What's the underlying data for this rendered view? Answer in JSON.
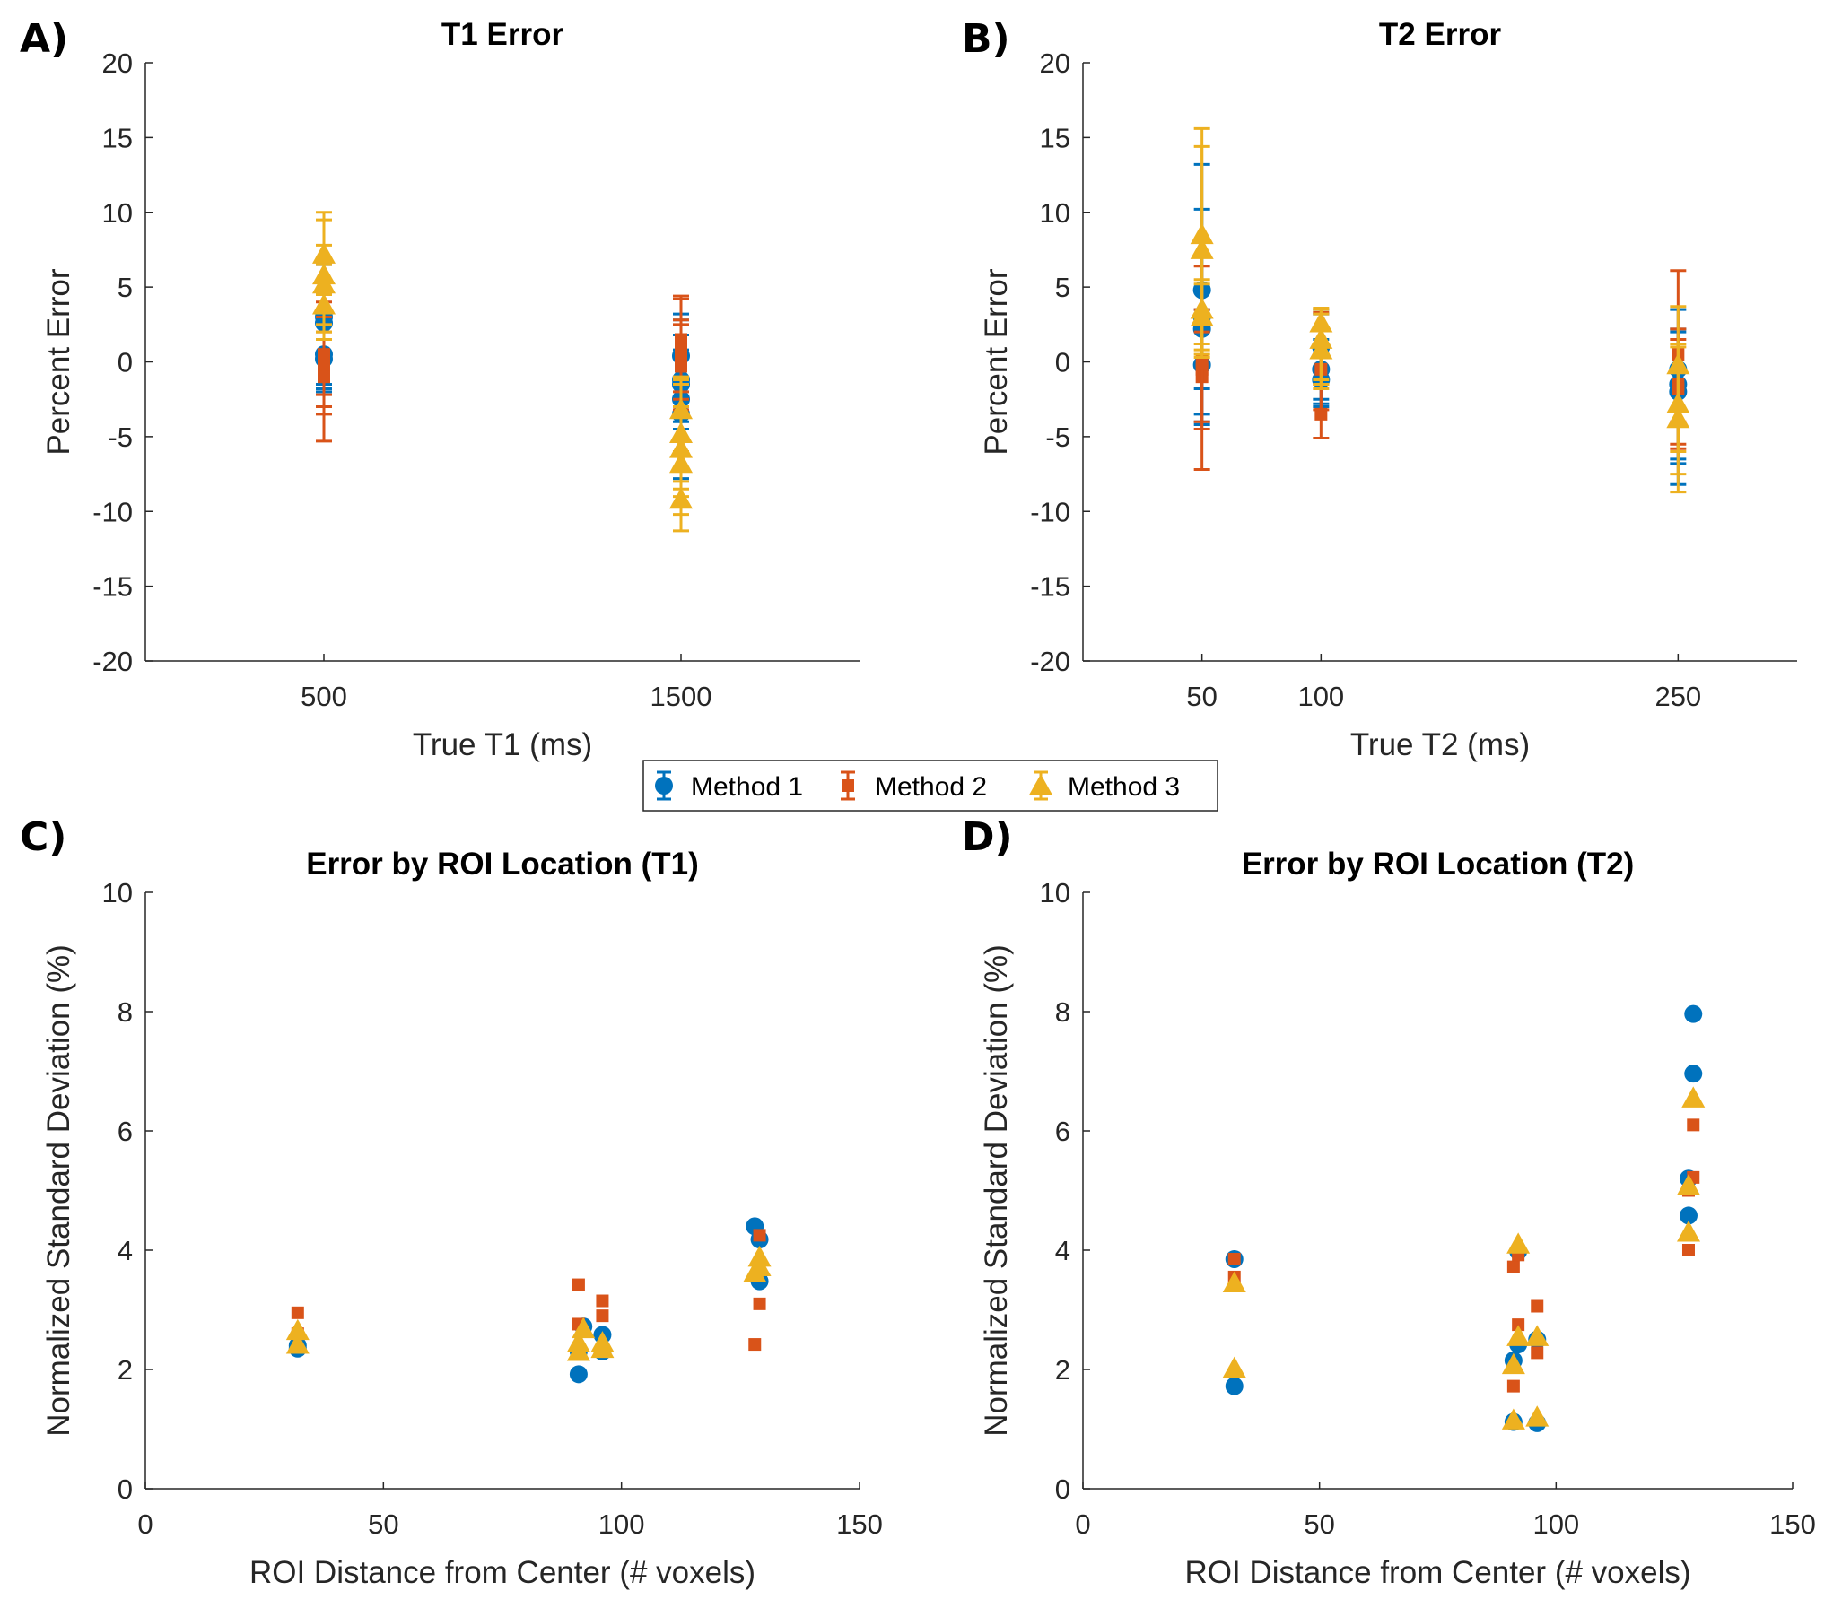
{
  "colors": {
    "method1": "#0072BD",
    "method2": "#D95319",
    "method3": "#EDB120",
    "axis": "#262626"
  },
  "legend": {
    "placement": "center-between-rows",
    "entries": [
      {
        "label": "Method 1",
        "marker": "circle-errorbar",
        "color": "#0072BD"
      },
      {
        "label": "Method 2",
        "marker": "square-errorbar",
        "color": "#D95319"
      },
      {
        "label": "Method 3",
        "marker": "triangle-errorbar",
        "color": "#EDB120"
      }
    ]
  },
  "chart_data": [
    {
      "panel": "A)",
      "type": "scatter",
      "title": "T1 Error",
      "xlabel": "True T1 (ms)",
      "ylabel": "Percent Error",
      "xlim": [
        0,
        2000
      ],
      "ylim": [
        -20,
        20
      ],
      "xticks": [
        500,
        1500
      ],
      "yticks": [
        -20,
        -15,
        -10,
        -5,
        0,
        5,
        10,
        15,
        20
      ],
      "grid": false,
      "series": [
        {
          "name": "Method 1",
          "marker": "circle",
          "points": [
            {
              "x": 500,
              "y": 2.6,
              "lo": -1.8,
              "hi": 6.5
            },
            {
              "x": 500,
              "y": 3.0,
              "lo": -1.5,
              "hi": 5.5
            },
            {
              "x": 500,
              "y": 0.5,
              "lo": -2.0,
              "hi": 3.5
            },
            {
              "x": 500,
              "y": 0.2,
              "lo": -1.5,
              "hi": 2.5
            },
            {
              "x": 1500,
              "y": 0.4,
              "lo": -2.5,
              "hi": 3.2
            },
            {
              "x": 1500,
              "y": -1.2,
              "lo": -4.0,
              "hi": 2.8
            },
            {
              "x": 1500,
              "y": -1.5,
              "lo": -4.5,
              "hi": 1.8
            },
            {
              "x": 1500,
              "y": -2.5,
              "lo": -6.0,
              "hi": 0.8
            },
            {
              "x": 1500,
              "y": -3.5,
              "lo": -7.8,
              "hi": 0.5
            }
          ]
        },
        {
          "name": "Method 2",
          "marker": "square",
          "points": [
            {
              "x": 500,
              "y": 0.5,
              "lo": -3.0,
              "hi": 4.0
            },
            {
              "x": 500,
              "y": -0.3,
              "lo": -3.5,
              "hi": 3.0
            },
            {
              "x": 500,
              "y": -1.0,
              "lo": -5.3,
              "hi": 2.5
            },
            {
              "x": 500,
              "y": 0.0,
              "lo": -2.2,
              "hi": 2.0
            },
            {
              "x": 1500,
              "y": 1.5,
              "lo": -2.0,
              "hi": 4.4
            },
            {
              "x": 1500,
              "y": 0.8,
              "lo": -2.5,
              "hi": 4.2
            },
            {
              "x": 1500,
              "y": 0.2,
              "lo": -3.0,
              "hi": 2.8
            },
            {
              "x": 1500,
              "y": -0.3,
              "lo": -3.2,
              "hi": 2.5
            }
          ]
        },
        {
          "name": "Method 3",
          "marker": "triangle",
          "points": [
            {
              "x": 500,
              "y": 7.2,
              "lo": 4.5,
              "hi": 10.0
            },
            {
              "x": 500,
              "y": 5.8,
              "lo": 2.5,
              "hi": 9.5
            },
            {
              "x": 500,
              "y": 5.2,
              "lo": 2.0,
              "hi": 7.8
            },
            {
              "x": 500,
              "y": 3.8,
              "lo": 1.5,
              "hi": 6.5
            },
            {
              "x": 1500,
              "y": -3.2,
              "lo": -8.0,
              "hi": -1.2
            },
            {
              "x": 1500,
              "y": -4.8,
              "lo": -8.5,
              "hi": -1.0
            },
            {
              "x": 1500,
              "y": -5.8,
              "lo": -9.0,
              "hi": -1.5
            },
            {
              "x": 1500,
              "y": -6.8,
              "lo": -10.2,
              "hi": -3.0
            },
            {
              "x": 1500,
              "y": -9.2,
              "lo": -11.3,
              "hi": -6.0
            }
          ]
        }
      ]
    },
    {
      "panel": "B)",
      "type": "scatter",
      "title": "T2 Error",
      "xlabel": "True T2 (ms)",
      "ylabel": "Percent Error",
      "xlim": [
        0,
        300
      ],
      "ylim": [
        -20,
        20
      ],
      "xticks": [
        50,
        100,
        250
      ],
      "yticks": [
        -20,
        -15,
        -10,
        -5,
        0,
        5,
        10,
        15,
        20
      ],
      "grid": false,
      "series": [
        {
          "name": "Method 1",
          "marker": "circle",
          "points": [
            {
              "x": 50,
              "y": 4.8,
              "lo": -3.5,
              "hi": 13.2
            },
            {
              "x": 50,
              "y": 2.2,
              "lo": -1.8,
              "hi": 10.2
            },
            {
              "x": 50,
              "y": 3.0,
              "lo": -4.0,
              "hi": 5.0
            },
            {
              "x": 50,
              "y": -0.2,
              "lo": -4.2,
              "hi": 3.5
            },
            {
              "x": 100,
              "y": 1.0,
              "lo": -2.5,
              "hi": 3.5
            },
            {
              "x": 100,
              "y": -0.5,
              "lo": -2.8,
              "hi": 3.2
            },
            {
              "x": 100,
              "y": -1.2,
              "lo": -3.0,
              "hi": 1.5
            },
            {
              "x": 250,
              "y": -0.5,
              "lo": -6.5,
              "hi": 3.5
            },
            {
              "x": 250,
              "y": -1.5,
              "lo": -8.2,
              "hi": 2.2
            },
            {
              "x": 250,
              "y": -2.0,
              "lo": -6.8,
              "hi": 2.0
            }
          ]
        },
        {
          "name": "Method 2",
          "marker": "square",
          "points": [
            {
              "x": 50,
              "y": -0.5,
              "lo": -7.2,
              "hi": 6.4
            },
            {
              "x": 50,
              "y": -1.0,
              "lo": -4.5,
              "hi": 3.5
            },
            {
              "x": 50,
              "y": 0.0,
              "lo": -4.0,
              "hi": 2.0
            },
            {
              "x": 100,
              "y": -3.5,
              "lo": -5.1,
              "hi": -1.5
            },
            {
              "x": 100,
              "y": -0.5,
              "lo": -3.2,
              "hi": 3.3
            },
            {
              "x": 250,
              "y": -1.5,
              "lo": -5.5,
              "hi": 6.1
            },
            {
              "x": 250,
              "y": -1.8,
              "lo": -5.8,
              "hi": 2.2
            },
            {
              "x": 250,
              "y": 0.5,
              "lo": -4.0,
              "hi": 1.5
            }
          ]
        },
        {
          "name": "Method 3",
          "marker": "triangle",
          "points": [
            {
              "x": 50,
              "y": 8.5,
              "lo": 1.2,
              "hi": 15.6
            },
            {
              "x": 50,
              "y": 7.5,
              "lo": 0.8,
              "hi": 14.4
            },
            {
              "x": 50,
              "y": 3.5,
              "lo": 0.5,
              "hi": 5.2
            },
            {
              "x": 50,
              "y": 3.0,
              "lo": 0.3,
              "hi": 5.5
            },
            {
              "x": 100,
              "y": 2.6,
              "lo": -1.5,
              "hi": 3.6
            },
            {
              "x": 100,
              "y": 1.5,
              "lo": -1.8,
              "hi": 3.5
            },
            {
              "x": 100,
              "y": 0.8,
              "lo": -1.2,
              "hi": 3.2
            },
            {
              "x": 250,
              "y": -0.2,
              "lo": -6.0,
              "hi": 3.7
            },
            {
              "x": 250,
              "y": -2.8,
              "lo": -8.7,
              "hi": 1.2
            },
            {
              "x": 250,
              "y": -3.8,
              "lo": -7.5,
              "hi": 1.0
            }
          ]
        }
      ]
    },
    {
      "panel": "C)",
      "type": "scatter",
      "title": "Error by ROI Location (T1)",
      "xlabel": "ROI Distance from Center (# voxels)",
      "ylabel": "Normalized Standard Deviation (%)",
      "xlim": [
        0,
        150
      ],
      "ylim": [
        0,
        10
      ],
      "xticks": [
        0,
        50,
        100,
        150
      ],
      "yticks": [
        0,
        2,
        4,
        6,
        8,
        10
      ],
      "grid": false,
      "series": [
        {
          "name": "Method 1",
          "marker": "circle",
          "points": [
            {
              "x": 32,
              "y": 2.35
            },
            {
              "x": 32,
              "y": 2.4
            },
            {
              "x": 91,
              "y": 1.92
            },
            {
              "x": 91,
              "y": 2.3
            },
            {
              "x": 92,
              "y": 2.72
            },
            {
              "x": 96,
              "y": 2.58
            },
            {
              "x": 96,
              "y": 2.3
            },
            {
              "x": 128,
              "y": 4.4
            },
            {
              "x": 129,
              "y": 4.18
            },
            {
              "x": 129,
              "y": 3.48
            }
          ]
        },
        {
          "name": "Method 2",
          "marker": "square",
          "points": [
            {
              "x": 32,
              "y": 2.95
            },
            {
              "x": 32,
              "y": 2.6
            },
            {
              "x": 91,
              "y": 3.42
            },
            {
              "x": 91,
              "y": 2.76
            },
            {
              "x": 96,
              "y": 3.15
            },
            {
              "x": 96,
              "y": 2.9
            },
            {
              "x": 129,
              "y": 4.25
            },
            {
              "x": 129,
              "y": 3.1
            },
            {
              "x": 128,
              "y": 2.42
            }
          ]
        },
        {
          "name": "Method 3",
          "marker": "triangle",
          "points": [
            {
              "x": 32,
              "y": 2.65
            },
            {
              "x": 32,
              "y": 2.42
            },
            {
              "x": 91,
              "y": 2.3
            },
            {
              "x": 91,
              "y": 2.45
            },
            {
              "x": 92,
              "y": 2.68
            },
            {
              "x": 96,
              "y": 2.45
            },
            {
              "x": 96,
              "y": 2.35
            },
            {
              "x": 129,
              "y": 3.88
            },
            {
              "x": 129,
              "y": 3.72
            },
            {
              "x": 128,
              "y": 3.62
            }
          ]
        }
      ]
    },
    {
      "panel": "D)",
      "type": "scatter",
      "title": "Error by ROI Location (T2)",
      "xlabel": "ROI Distance from Center (# voxels)",
      "ylabel": "Normalized Standard Deviation (%)",
      "xlim": [
        0,
        150
      ],
      "ylim": [
        0,
        10
      ],
      "xticks": [
        0,
        50,
        100,
        150
      ],
      "yticks": [
        0,
        2,
        4,
        6,
        8,
        10
      ],
      "grid": false,
      "series": [
        {
          "name": "Method 1",
          "marker": "circle",
          "points": [
            {
              "x": 32,
              "y": 3.85
            },
            {
              "x": 32,
              "y": 1.72
            },
            {
              "x": 91,
              "y": 2.15
            },
            {
              "x": 92,
              "y": 2.42
            },
            {
              "x": 92,
              "y": 3.98
            },
            {
              "x": 91,
              "y": 1.12
            },
            {
              "x": 96,
              "y": 2.5
            },
            {
              "x": 96,
              "y": 1.1
            },
            {
              "x": 129,
              "y": 7.96
            },
            {
              "x": 129,
              "y": 6.96
            },
            {
              "x": 128,
              "y": 5.2
            },
            {
              "x": 128,
              "y": 4.58
            }
          ]
        },
        {
          "name": "Method 2",
          "marker": "square",
          "points": [
            {
              "x": 32,
              "y": 3.85
            },
            {
              "x": 32,
              "y": 3.55
            },
            {
              "x": 91,
              "y": 3.72
            },
            {
              "x": 92,
              "y": 3.92
            },
            {
              "x": 92,
              "y": 2.75
            },
            {
              "x": 91,
              "y": 1.72
            },
            {
              "x": 96,
              "y": 3.06
            },
            {
              "x": 96,
              "y": 2.28
            },
            {
              "x": 129,
              "y": 6.1
            },
            {
              "x": 129,
              "y": 5.22
            },
            {
              "x": 128,
              "y": 5.0
            },
            {
              "x": 128,
              "y": 4.0
            }
          ]
        },
        {
          "name": "Method 3",
          "marker": "triangle",
          "points": [
            {
              "x": 32,
              "y": 3.45
            },
            {
              "x": 32,
              "y": 2.02
            },
            {
              "x": 92,
              "y": 4.1
            },
            {
              "x": 92,
              "y": 2.55
            },
            {
              "x": 91,
              "y": 2.08
            },
            {
              "x": 91,
              "y": 1.15
            },
            {
              "x": 96,
              "y": 2.55
            },
            {
              "x": 96,
              "y": 1.2
            },
            {
              "x": 129,
              "y": 6.55
            },
            {
              "x": 128,
              "y": 5.08
            },
            {
              "x": 128,
              "y": 4.3
            }
          ]
        }
      ]
    }
  ]
}
